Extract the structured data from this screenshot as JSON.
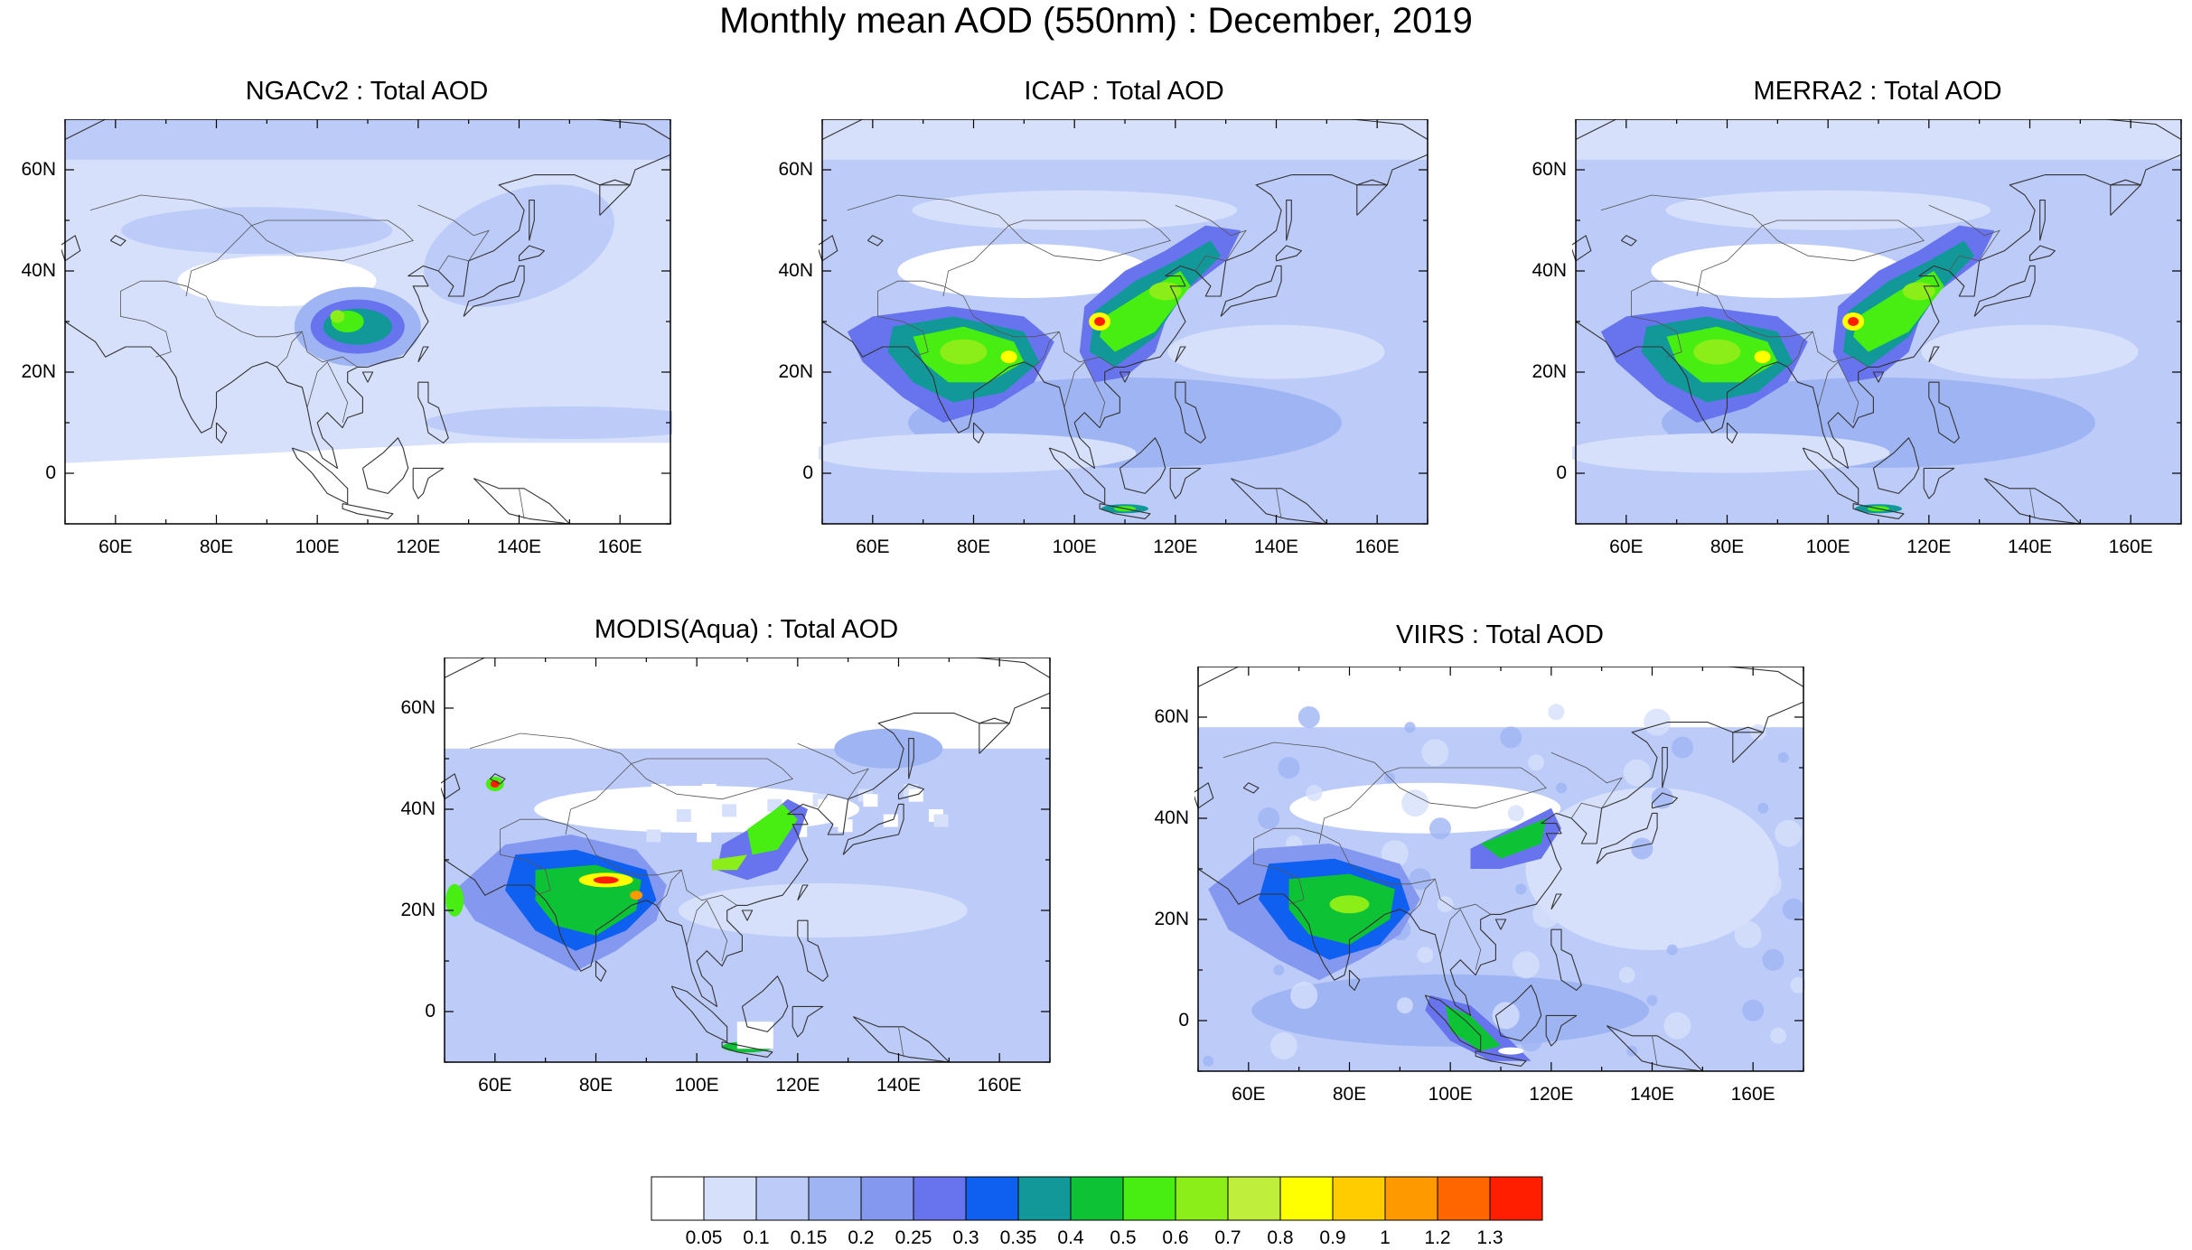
{
  "title": "Monthly mean AOD (550nm) : December, 2019",
  "lat_ticks": [
    "60N",
    "40N",
    "20N",
    "0"
  ],
  "lon_ticks": [
    "60E",
    "80E",
    "100E",
    "120E",
    "140E",
    "160E"
  ],
  "panels": [
    {
      "title": "NGACv2 : Total AOD",
      "style": "model_smooth"
    },
    {
      "title": "ICAP : Total AOD",
      "style": "model_high"
    },
    {
      "title": "MERRA2 : Total AOD",
      "style": "model_high"
    },
    {
      "title": "MODIS(Aqua) : Total AOD",
      "style": "satellite_blocky"
    },
    {
      "title": "VIIRS : Total AOD",
      "style": "satellite_fine"
    }
  ],
  "colorbar": {
    "levels": [
      "0.05",
      "0.1",
      "0.15",
      "0.2",
      "0.25",
      "0.3",
      "0.35",
      "0.4",
      "0.5",
      "0.6",
      "0.7",
      "0.8",
      "0.9",
      "1",
      "1.2",
      "1.3"
    ],
    "colors": [
      "#ffffff",
      "#d6e0fb",
      "#bccbf8",
      "#9fb4f3",
      "#8398ee",
      "#6774ee",
      "#0f5ff0",
      "#129898",
      "#0ec235",
      "#48ee12",
      "#8cee18",
      "#c0ee3c",
      "#ffff00",
      "#ffcc00",
      "#ff9900",
      "#ff6600",
      "#ff1f00"
    ]
  }
}
